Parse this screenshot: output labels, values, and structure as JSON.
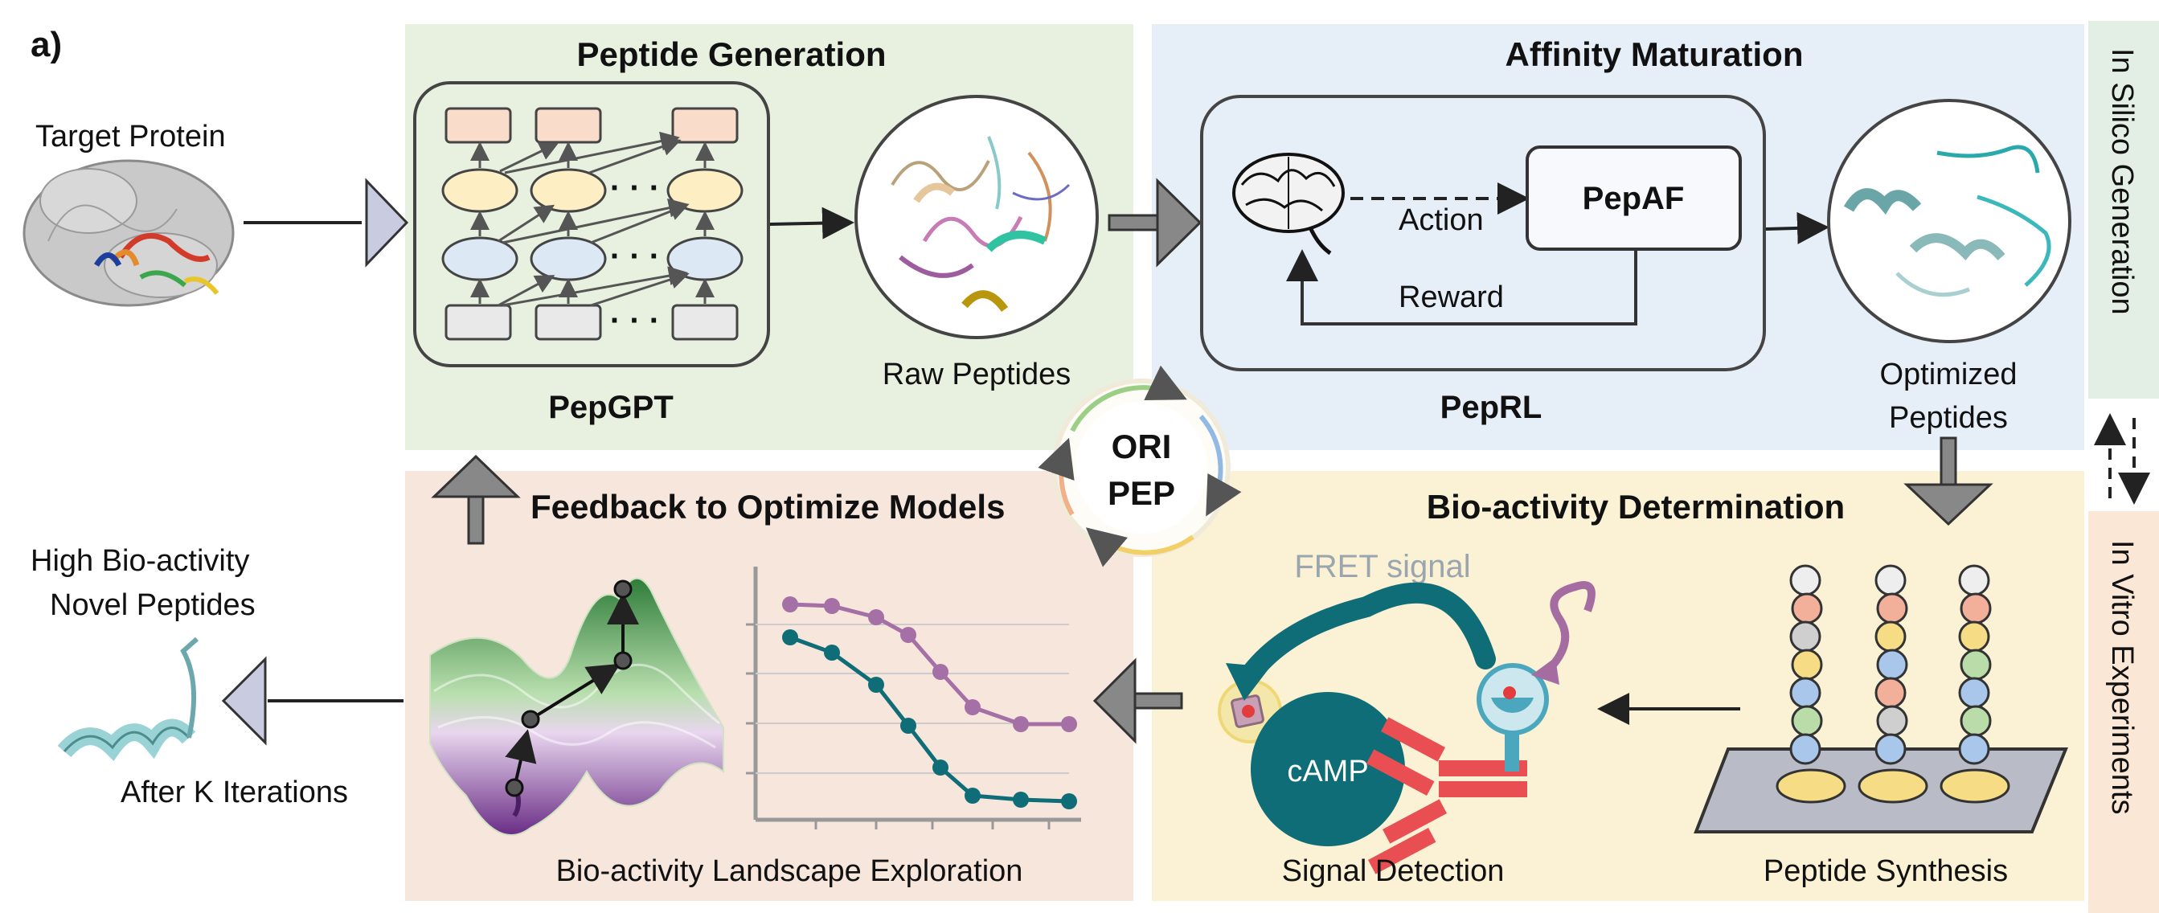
{
  "panel_label": "a)",
  "target_protein": "Target Protein",
  "sections": {
    "peptide_generation": "Peptide Generation",
    "affinity_maturation": "Affinity Maturation",
    "feedback": "Feedback to Optimize Models",
    "bioactivity": "Bio-activity Determination"
  },
  "pepgpt": {
    "name": "PepGPT",
    "dots": "· · ·"
  },
  "raw_peptides": "Raw Peptides",
  "peprl": {
    "name": "PepRL",
    "pepaf": "PepAF",
    "action": "Action",
    "reward": "Reward"
  },
  "optimized_peptides": {
    "line1": "Optimized",
    "line2": "Peptides"
  },
  "side_labels": {
    "in_silico": "In Silico Generation",
    "in_vitro": "In Vitro Experiments"
  },
  "oripep": {
    "line1": "ORI",
    "line2": "PEP"
  },
  "high_bioactivity": {
    "line1": "High Bio-activity",
    "line2": "Novel Peptides"
  },
  "after_k": "After K Iterations",
  "landscape": "Bio-activity Landscape Exploration",
  "fret": "FRET signal",
  "camp": "cAMP",
  "signal_detection": "Signal Detection",
  "peptide_synthesis": "Peptide Synthesis",
  "colors": {
    "green_bg": "#e8f1e0",
    "blue_bg": "#e6eef8",
    "peach_bg": "#f7e6dc",
    "yellow_bg": "#fbf1d5",
    "teal": "#0f6d78"
  }
}
